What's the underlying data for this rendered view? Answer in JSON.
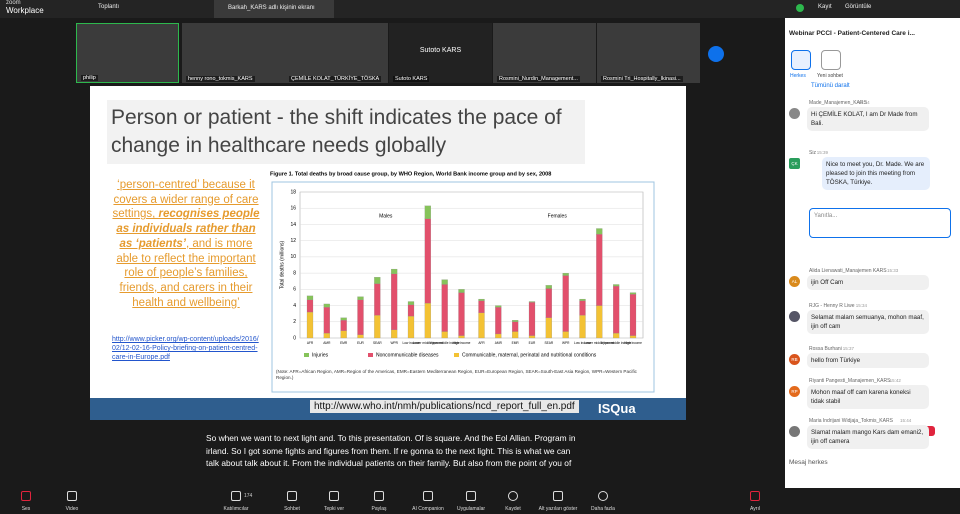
{
  "top_bar": {
    "app": "zoom",
    "app_sub": "Workplace",
    "tabs": [
      "Toplantı",
      "Barkah_KARS adlı kişinin ekranı"
    ],
    "record": "Kayıt",
    "view": "Görüntüle"
  },
  "participants": [
    "philip",
    "henny rono_tokmis_KARS",
    "ÇEMİLE KOLAT_TÜRKİYE_TÖSKA",
    "Sutoto KARS",
    "Rosmini_Nurdin_Management...",
    "Rosmini Tri_Hospitally_Ikinasi..."
  ],
  "participant_center": "Sutoto KARS",
  "slide": {
    "title": "Person or patient -  the shift indicates the pace of change in healthcare needs globally",
    "text": [
      "‘person-centred’ because it covers a wider range of care settings, ",
      "recognises people as individuals rather than as ‘patients’",
      ", and is more able to reflect the important role of people’s families, friends, and carers in their health and wellbeing’"
    ],
    "link": "http://www.picker.org/wp-content/uploads/2016/02/12-02-16-Policy-briefing-on-patient-centred-care-in-Europe.pdf",
    "url": "http://www.who.int/nmh/publications/ncd_report_full_en.pdf",
    "logo": "ISQua",
    "chart": {
      "type": "bar",
      "title": "Figure 1. Total deaths by broad cause group, by WHO Region, World Bank income group and by sex, 2008",
      "y_label": "Total deaths (millions)",
      "groups": [
        "Males",
        "Females"
      ],
      "categories": [
        "AFR",
        "AMR",
        "EMR",
        "EUR",
        "SEAR",
        "WPR",
        "Low income",
        "Lower middle income",
        "Upper middle income",
        "High income",
        "AFR",
        "AMR",
        "EMR",
        "EUR",
        "SEAR",
        "WPR",
        "Low income",
        "Lower middle income",
        "Upper middle income",
        "High income"
      ],
      "ylim": [
        0,
        18
      ],
      "yticks": [
        0,
        2,
        4,
        6,
        8,
        10,
        12,
        14,
        16,
        18
      ],
      "series": [
        {
          "name": "Injuries",
          "color": "#86c35a",
          "values": [
            0.5,
            0.4,
            0.3,
            0.4,
            0.8,
            0.6,
            0.4,
            1.6,
            0.6,
            0.4,
            0.2,
            0.2,
            0.2,
            0.1,
            0.4,
            0.3,
            0.2,
            0.7,
            0.2,
            0.2
          ]
        },
        {
          "name": "Noncommunicable diseases",
          "color": "#e2506c",
          "values": [
            1.5,
            3.2,
            1.3,
            4.3,
            3.9,
            6.9,
            1.4,
            10.4,
            5.8,
            5.3,
            1.5,
            3.3,
            1.2,
            4.1,
            3.6,
            6.9,
            1.8,
            8.8,
            5.8,
            5.1
          ]
        },
        {
          "name": "Communicable, maternal, perinatal and nutritional conditions",
          "color": "#f3c234",
          "values": [
            3.2,
            0.6,
            0.9,
            0.4,
            2.8,
            1.0,
            2.7,
            4.3,
            0.8,
            0.3,
            3.1,
            0.5,
            0.8,
            0.3,
            2.5,
            0.8,
            2.8,
            4.0,
            0.6,
            0.3
          ]
        }
      ],
      "note": "(Note: AFR=African Region, AMR=Region of the Americas, EMR=Eastern Mediterranean Region, EUR=European Region, SEAR=South-East Asia Region, WPR=Western Pacific Region.)"
    }
  },
  "captions": "So when we want to next light and. To this presentation. Of is square. And the Eol Allian. Program in irland. So I got some fights and figures from them. If re gonna to the next light. This is what we can talk about talk about it. From the individual patients on their family. But also from the point of you of",
  "chat": {
    "title": "Webinar PCCI - Patient-Centered Care i...",
    "tabs": [
      "Herkes",
      "Yeni sohbet"
    ],
    "collapse": "Tümünü daralt",
    "reply": "Yanıtla...",
    "messages": [
      {
        "sender": "Made_Manajemen_KARS",
        "time": "15:34",
        "text": "Hi ÇEMİLE KOLAT, I am Dr Made from Bali."
      },
      {
        "sender": "Siz",
        "time": "15:39",
        "avatar": "ÇK",
        "text": "Nice to meet you, Dr. Made. We are pleased to join this meeting from TÖSKA, Türkiye."
      },
      {
        "sender": "Alida Lienawati_Manajemen KARS",
        "time": "15:33",
        "avatar": "AL",
        "text": "ijin Off Cam"
      },
      {
        "sender": "RJG - Henny R Liwe",
        "time": "15:34",
        "text": "Selamat malam semuanya, mohon maaf, ijin off cam"
      },
      {
        "sender": "Rossa Burhani",
        "time": "15:37",
        "avatar": "RB",
        "text": "hello from Türkiye"
      },
      {
        "sender": "Riyanti Pangesti_Manajemen_KARS",
        "time": "15:42",
        "avatar": "RP",
        "text": "Mohon maaf off cam karena koneksi tidak stabil"
      },
      {
        "sender": "Maria Indrijani Widjaja_Tokmis_KARS",
        "time": "15:44",
        "text": "Slamat malam mango Kars dam emani2, ijin off camera"
      }
    ],
    "new_badge": "1 yeni",
    "privacy": "Mesajlarınızı kimler görebilir? Kayıt açık",
    "input": "Mesaj herkes"
  },
  "toolbar": {
    "items": [
      "Ses",
      "Video",
      "Katılımcılar",
      "Sohbet",
      "Tepki ver",
      "Paylaş",
      "AI Companion",
      "Uygulamalar",
      "Kaydet",
      "Alt yazıları göster",
      "Daha fazla",
      "Ayrıl"
    ],
    "participant_count": "174"
  }
}
